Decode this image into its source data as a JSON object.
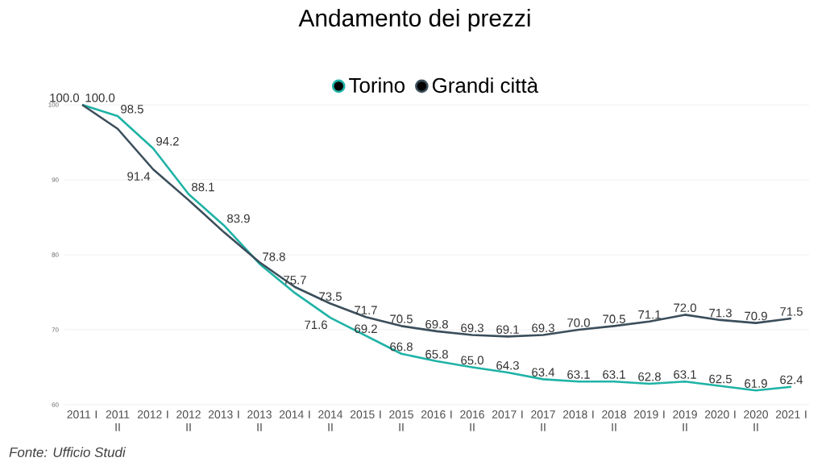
{
  "chart_data": {
    "type": "line",
    "title": "Andamento dei prezzi",
    "categories": [
      "2011 I",
      "2011 II",
      "2012 I",
      "2012 II",
      "2013 I",
      "2013 II",
      "2014 I",
      "2014 II",
      "2015 I",
      "2015 II",
      "2016 I",
      "2016 II",
      "2017 I",
      "2017 II",
      "2018 I",
      "2018 II",
      "2019 I",
      "2019 II",
      "2020 I",
      "2020 II",
      "2021 I"
    ],
    "series": [
      {
        "name": "Torino",
        "color": "#1fb3a6",
        "values": [
          100.0,
          98.5,
          94.2,
          88.1,
          83.9,
          78.8,
          74.9,
          71.6,
          69.2,
          66.8,
          65.8,
          65.0,
          64.3,
          63.4,
          63.1,
          63.1,
          62.8,
          63.1,
          62.5,
          61.9,
          62.4
        ],
        "value_labels": [
          "100.0",
          "98.5",
          "94.2",
          "88.1",
          "83.9",
          "78.8",
          null,
          "71.6",
          "69.2",
          "66.8",
          "65.8",
          "65.0",
          "64.3",
          "63.4",
          "63.1",
          "63.1",
          "62.8",
          "63.1",
          "62.5",
          "61.9",
          "62.4"
        ]
      },
      {
        "name": "Grandi città",
        "color": "#3b4e5b",
        "values": [
          100.0,
          96.8,
          91.4,
          87.3,
          83.0,
          79.0,
          75.7,
          73.5,
          71.7,
          70.5,
          69.8,
          69.3,
          69.1,
          69.3,
          70.0,
          70.5,
          71.1,
          72.0,
          71.3,
          70.9,
          71.5
        ],
        "value_labels": [
          "100.0",
          null,
          "91.4",
          null,
          null,
          null,
          "75.7",
          "73.5",
          "71.7",
          "70.5",
          "69.8",
          "69.3",
          "69.1",
          "69.3",
          "70.0",
          "70.5",
          "71.1",
          "72.0",
          "71.3",
          "70.9",
          "71.5"
        ]
      }
    ],
    "ylim": [
      60,
      100
    ],
    "yticks": [
      60,
      70,
      80,
      90,
      100
    ],
    "grid": "y",
    "legend": "top",
    "annotations": [
      "Fonte: Ufficio Studi"
    ]
  }
}
